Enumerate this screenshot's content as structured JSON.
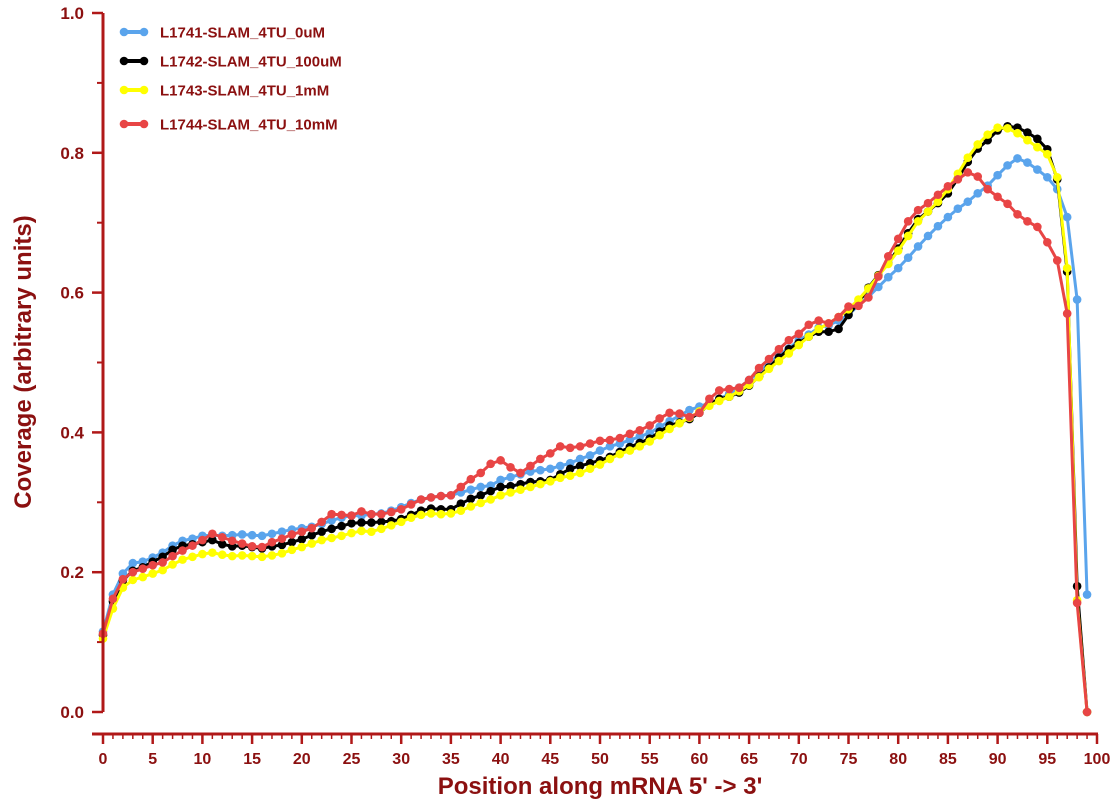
{
  "chart_data": {
    "type": "line",
    "xlabel": "Position along mRNA 5' -> 3'",
    "ylabel": "Coverage (arbitrary units)",
    "xlim": [
      0,
      100
    ],
    "ylim": [
      0.0,
      1.0
    ],
    "x_ticks": [
      "0",
      "5",
      "10",
      "15",
      "20",
      "25",
      "30",
      "35",
      "40",
      "45",
      "50",
      "55",
      "60",
      "65",
      "70",
      "75",
      "80",
      "85",
      "90",
      "95",
      "100"
    ],
    "y_ticks": [
      "0.0",
      "0.2",
      "0.4",
      "0.6",
      "0.8",
      "1.0"
    ],
    "legend_position": "top-left",
    "grid": false,
    "axis_color": "#b01818",
    "label_color": "#8b1010",
    "series": [
      {
        "name": "L1741-SLAM_4TU_0uM",
        "color": "#5aa4ec",
        "values": [
          0.115,
          0.168,
          0.198,
          0.213,
          0.215,
          0.221,
          0.228,
          0.238,
          0.245,
          0.248,
          0.252,
          0.253,
          0.252,
          0.253,
          0.254,
          0.253,
          0.252,
          0.255,
          0.258,
          0.261,
          0.263,
          0.265,
          0.269,
          0.274,
          0.278,
          0.281,
          0.281,
          0.283,
          0.284,
          0.288,
          0.293,
          0.299,
          0.304,
          0.307,
          0.309,
          0.31,
          0.314,
          0.318,
          0.322,
          0.324,
          0.332,
          0.336,
          0.34,
          0.344,
          0.346,
          0.348,
          0.352,
          0.356,
          0.362,
          0.367,
          0.374,
          0.38,
          0.384,
          0.389,
          0.394,
          0.399,
          0.408,
          0.416,
          0.424,
          0.432,
          0.437,
          0.442,
          0.448,
          0.455,
          0.464,
          0.475,
          0.486,
          0.499,
          0.511,
          0.52,
          0.532,
          0.54,
          0.55,
          0.553,
          0.56,
          0.568,
          0.582,
          0.594,
          0.608,
          0.622,
          0.635,
          0.65,
          0.666,
          0.681,
          0.695,
          0.708,
          0.72,
          0.73,
          0.742,
          0.753,
          0.768,
          0.782,
          0.792,
          0.786,
          0.776,
          0.765,
          0.748,
          0.708,
          0.59,
          0.168
        ]
      },
      {
        "name": "L1742-SLAM_4TU_100uM",
        "color": "#000000",
        "values": [
          0.11,
          0.158,
          0.188,
          0.202,
          0.207,
          0.215,
          0.222,
          0.232,
          0.238,
          0.24,
          0.243,
          0.246,
          0.24,
          0.237,
          0.238,
          0.236,
          0.234,
          0.237,
          0.239,
          0.243,
          0.247,
          0.253,
          0.258,
          0.262,
          0.266,
          0.27,
          0.271,
          0.271,
          0.272,
          0.273,
          0.276,
          0.282,
          0.288,
          0.291,
          0.29,
          0.29,
          0.298,
          0.305,
          0.31,
          0.316,
          0.322,
          0.323,
          0.326,
          0.329,
          0.33,
          0.332,
          0.34,
          0.348,
          0.352,
          0.356,
          0.36,
          0.365,
          0.372,
          0.379,
          0.385,
          0.391,
          0.401,
          0.41,
          0.414,
          0.419,
          0.428,
          0.44,
          0.448,
          0.451,
          0.457,
          0.467,
          0.48,
          0.493,
          0.507,
          0.519,
          0.528,
          0.537,
          0.544,
          0.544,
          0.548,
          0.568,
          0.585,
          0.607,
          0.625,
          0.642,
          0.663,
          0.685,
          0.705,
          0.716,
          0.728,
          0.742,
          0.763,
          0.787,
          0.806,
          0.818,
          0.832,
          0.838,
          0.836,
          0.829,
          0.82,
          0.805,
          0.762,
          0.63,
          0.18,
          0.0
        ]
      },
      {
        "name": "L1743-SLAM_4TU_1mM",
        "color": "#ffff00",
        "values": [
          0.105,
          0.148,
          0.178,
          0.189,
          0.193,
          0.198,
          0.203,
          0.211,
          0.218,
          0.222,
          0.226,
          0.228,
          0.225,
          0.223,
          0.224,
          0.223,
          0.222,
          0.224,
          0.227,
          0.232,
          0.236,
          0.241,
          0.246,
          0.249,
          0.252,
          0.256,
          0.259,
          0.258,
          0.262,
          0.267,
          0.272,
          0.278,
          0.282,
          0.284,
          0.283,
          0.284,
          0.288,
          0.294,
          0.299,
          0.304,
          0.31,
          0.314,
          0.318,
          0.322,
          0.326,
          0.33,
          0.335,
          0.338,
          0.342,
          0.348,
          0.354,
          0.362,
          0.369,
          0.374,
          0.38,
          0.387,
          0.396,
          0.405,
          0.413,
          0.421,
          0.43,
          0.438,
          0.445,
          0.451,
          0.459,
          0.468,
          0.479,
          0.491,
          0.502,
          0.513,
          0.525,
          0.537,
          0.548,
          0.556,
          0.565,
          0.576,
          0.59,
          0.606,
          0.624,
          0.641,
          0.66,
          0.681,
          0.702,
          0.716,
          0.73,
          0.748,
          0.77,
          0.793,
          0.812,
          0.826,
          0.836,
          0.835,
          0.828,
          0.818,
          0.808,
          0.798,
          0.765,
          0.635,
          0.16,
          0.0
        ]
      },
      {
        "name": "L1744-SLAM_4TU_10mM",
        "color": "#e84545",
        "values": [
          0.112,
          0.162,
          0.19,
          0.2,
          0.205,
          0.21,
          0.214,
          0.223,
          0.231,
          0.238,
          0.246,
          0.255,
          0.25,
          0.245,
          0.241,
          0.237,
          0.236,
          0.243,
          0.248,
          0.254,
          0.258,
          0.263,
          0.272,
          0.283,
          0.282,
          0.281,
          0.287,
          0.283,
          0.283,
          0.286,
          0.29,
          0.297,
          0.304,
          0.307,
          0.309,
          0.31,
          0.322,
          0.333,
          0.342,
          0.355,
          0.36,
          0.35,
          0.342,
          0.352,
          0.362,
          0.37,
          0.38,
          0.378,
          0.38,
          0.384,
          0.388,
          0.389,
          0.392,
          0.398,
          0.403,
          0.41,
          0.42,
          0.428,
          0.427,
          0.422,
          0.428,
          0.448,
          0.46,
          0.462,
          0.464,
          0.475,
          0.492,
          0.505,
          0.519,
          0.532,
          0.541,
          0.554,
          0.56,
          0.556,
          0.565,
          0.58,
          0.581,
          0.593,
          0.623,
          0.652,
          0.677,
          0.702,
          0.718,
          0.728,
          0.74,
          0.752,
          0.762,
          0.772,
          0.766,
          0.748,
          0.737,
          0.727,
          0.712,
          0.702,
          0.694,
          0.672,
          0.646,
          0.57,
          0.156,
          0.0
        ]
      }
    ]
  }
}
